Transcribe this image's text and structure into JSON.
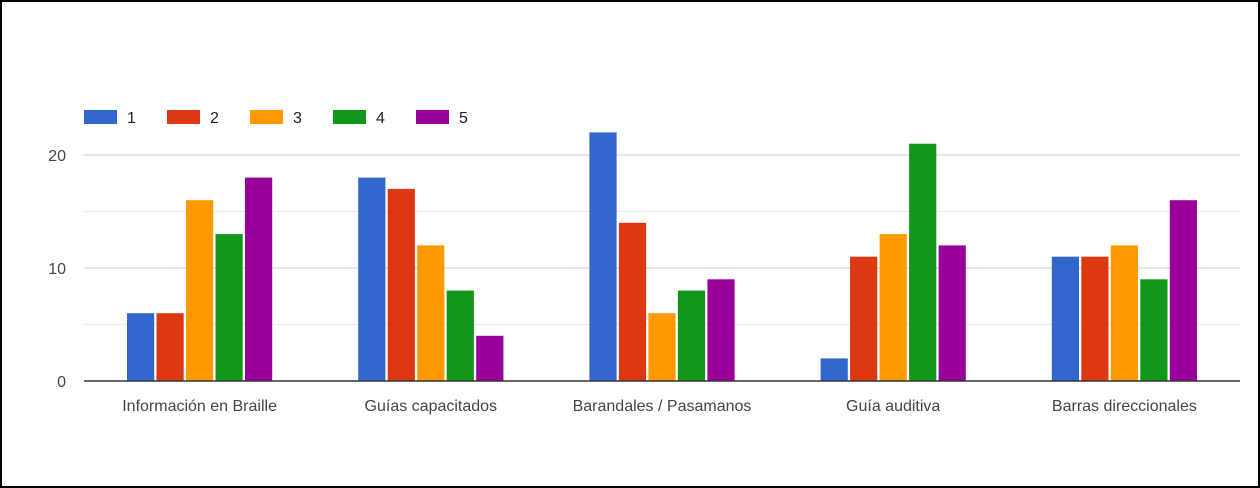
{
  "chart_data": {
    "type": "bar",
    "title": "",
    "xlabel": "",
    "ylabel": "",
    "categories": [
      "Información en Braille",
      "Guías capacitados",
      "Barandales / Pasamanos",
      "Guía auditiva",
      "Barras direccionales"
    ],
    "series": [
      {
        "name": "1",
        "color": "#3366cc",
        "values": [
          6,
          18,
          22,
          2,
          11
        ]
      },
      {
        "name": "2",
        "color": "#dc3912",
        "values": [
          6,
          17,
          14,
          11,
          11
        ]
      },
      {
        "name": "3",
        "color": "#ff9900",
        "values": [
          16,
          12,
          6,
          13,
          12
        ]
      },
      {
        "name": "4",
        "color": "#109618",
        "values": [
          13,
          8,
          8,
          21,
          9
        ]
      },
      {
        "name": "5",
        "color": "#990099",
        "values": [
          18,
          4,
          9,
          12,
          16
        ]
      }
    ],
    "ylim": [
      0,
      25
    ],
    "yticks": [
      0,
      10,
      20
    ],
    "grid": true,
    "legend_position": "top-left"
  }
}
